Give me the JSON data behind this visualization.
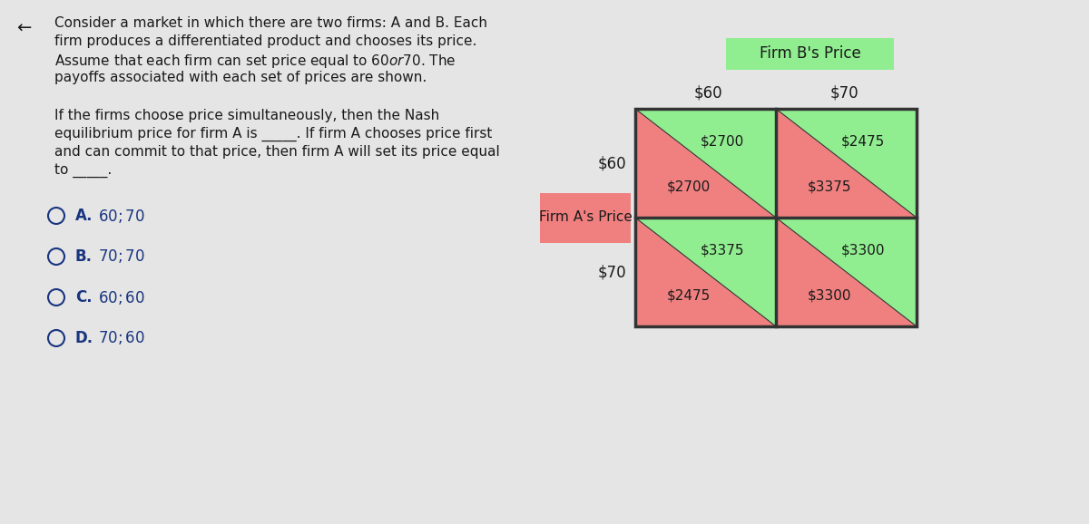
{
  "background_color": "#e5e5e5",
  "question_text_lines": [
    "Consider a market in which there are two firms: A and B. Each",
    "firm produces a differentiated product and chooses its price.",
    "Assume that each firm can set price equal to $60 or $70. The",
    "payoffs associated with each set of prices are shown."
  ],
  "question2_text_lines": [
    "If the firms choose price simultaneously, then the Nash",
    "equilibrium price for firm A is _____. If firm A chooses price first",
    "and can commit to that price, then firm A will set its price equal",
    "to _____."
  ],
  "options_letter": [
    "A.",
    "B.",
    "C.",
    "D."
  ],
  "options_text": [
    "$60; $70",
    "$70; $70",
    "$60; $60",
    "$70; $60"
  ],
  "firm_b_label": "Firm B's Price",
  "firm_a_label": "Firm A's Price",
  "col_labels": [
    "$60",
    "$70"
  ],
  "row_labels": [
    "$60",
    "$70"
  ],
  "firm_b_label_bg": "#90ee90",
  "firm_a_label_bg": "#f08080",
  "cell_green": "#90ee90",
  "cell_pink": "#f08080",
  "payoffs": {
    "r0c0_top": "$2700",
    "r0c0_bot": "$2700",
    "r0c1_top": "$2475",
    "r0c1_bot": "$3375",
    "r1c0_top": "$3375",
    "r1c0_bot": "$2475",
    "r1c1_top": "$3300",
    "r1c1_bot": "$3300"
  },
  "text_color": "#1a1a1a",
  "option_color": "#1a3580",
  "border_color": "#333333",
  "grid_bg": "#d8d8d8"
}
